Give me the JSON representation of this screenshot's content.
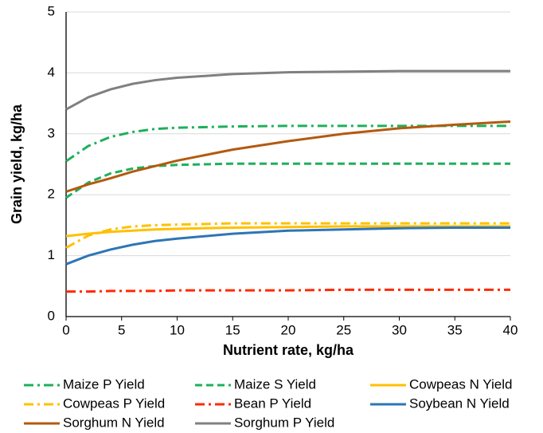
{
  "chart_data": {
    "type": "line",
    "xlabel": "Nutrient rate, kg/ha",
    "ylabel": "Grain yield, kg/ha",
    "x": [
      0,
      2,
      4,
      6,
      8,
      10,
      15,
      20,
      25,
      30,
      35,
      40
    ],
    "xlim": [
      0,
      40
    ],
    "xticks": [
      0,
      5,
      10,
      15,
      20,
      25,
      30,
      35,
      40
    ],
    "ylim": [
      0,
      5
    ],
    "yticks": [
      0,
      1,
      2,
      3,
      4,
      5
    ],
    "grid": true,
    "series": [
      {
        "name": "Maize P Yield",
        "color": "#1db05a",
        "dash": "dashdot",
        "values": [
          2.55,
          2.8,
          2.95,
          3.03,
          3.08,
          3.1,
          3.12,
          3.13,
          3.13,
          3.13,
          3.13,
          3.13
        ]
      },
      {
        "name": "Maize S Yield",
        "color": "#1db05a",
        "dash": "dashed",
        "values": [
          1.95,
          2.2,
          2.35,
          2.43,
          2.47,
          2.49,
          2.51,
          2.51,
          2.51,
          2.51,
          2.51,
          2.51
        ]
      },
      {
        "name": "Cowpeas N Yield",
        "color": "#ffc000",
        "dash": "solid",
        "values": [
          1.32,
          1.36,
          1.39,
          1.41,
          1.43,
          1.44,
          1.46,
          1.47,
          1.48,
          1.48,
          1.48,
          1.48
        ]
      },
      {
        "name": "Cowpeas P Yield",
        "color": "#ffc000",
        "dash": "dashdot",
        "values": [
          1.13,
          1.33,
          1.43,
          1.48,
          1.5,
          1.51,
          1.53,
          1.53,
          1.53,
          1.53,
          1.53,
          1.53
        ]
      },
      {
        "name": "Bean P Yield",
        "color": "#ff2a00",
        "dash": "dashdot",
        "values": [
          0.41,
          0.41,
          0.42,
          0.42,
          0.42,
          0.43,
          0.43,
          0.43,
          0.44,
          0.44,
          0.44,
          0.44
        ]
      },
      {
        "name": "Soybean N Yield",
        "color": "#2e75b6",
        "dash": "solid",
        "values": [
          0.86,
          1.0,
          1.1,
          1.18,
          1.24,
          1.28,
          1.36,
          1.41,
          1.43,
          1.45,
          1.46,
          1.46
        ]
      },
      {
        "name": "Sorghum N Yield",
        "color": "#b35a10",
        "dash": "solid",
        "values": [
          2.05,
          2.17,
          2.27,
          2.38,
          2.47,
          2.56,
          2.74,
          2.88,
          3.0,
          3.09,
          3.15,
          3.2
        ]
      },
      {
        "name": "Sorghum P Yield",
        "color": "#808080",
        "dash": "solid",
        "values": [
          3.4,
          3.6,
          3.73,
          3.82,
          3.88,
          3.92,
          3.98,
          4.01,
          4.02,
          4.03,
          4.03,
          4.03
        ]
      }
    ]
  }
}
